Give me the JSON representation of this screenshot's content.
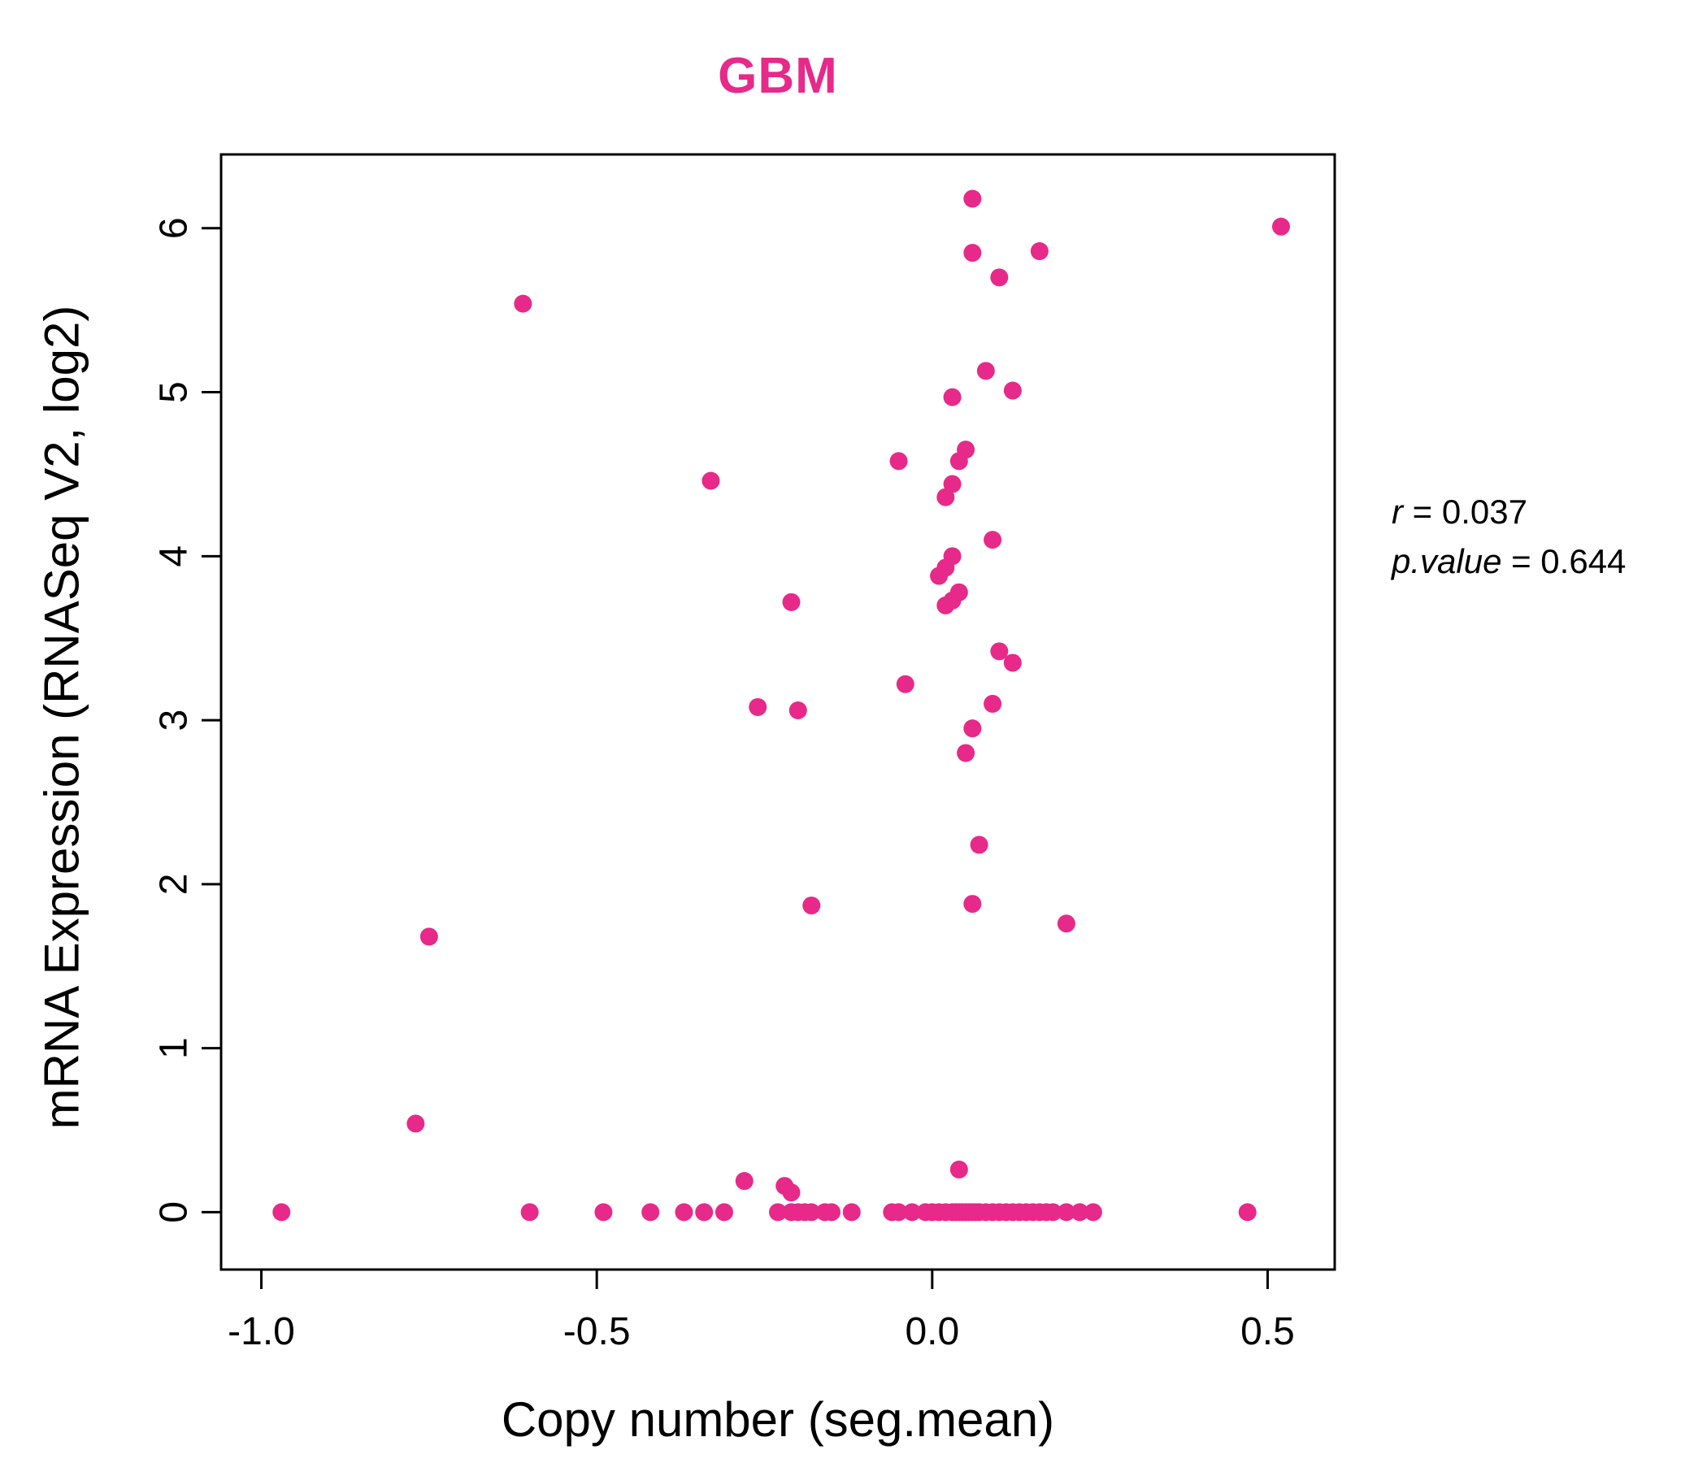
{
  "colors": {
    "accent": "#E7298A",
    "axis": "#000000"
  },
  "annotation": {
    "r_label": "r",
    "r_eq": " = 0.037",
    "p_label": "p.value",
    "p_eq": " = 0.644"
  },
  "chart_data": {
    "type": "scatter",
    "title": "GBM",
    "xlabel": "Copy number (seg.mean)",
    "ylabel": "mRNA Expression (RNASeq V2, log2)",
    "xlim": [
      -1.06,
      0.6
    ],
    "ylim": [
      -0.35,
      6.45
    ],
    "x_ticks": [
      -1.0,
      -0.5,
      0.0,
      0.5
    ],
    "x_tick_labels": [
      "-1.0",
      "-0.5",
      "0.0",
      "0.5"
    ],
    "y_ticks": [
      0,
      1,
      2,
      3,
      4,
      5,
      6
    ],
    "y_tick_labels": [
      "0",
      "1",
      "2",
      "3",
      "4",
      "5",
      "6"
    ],
    "point_color": "#E7298A",
    "grid": false,
    "legend": "none",
    "stats": {
      "r": 0.037,
      "p_value": 0.644
    },
    "points": [
      [
        0.06,
        6.18
      ],
      [
        0.52,
        6.01
      ],
      [
        0.16,
        5.86
      ],
      [
        0.06,
        5.85
      ],
      [
        0.1,
        5.7
      ],
      [
        -0.61,
        5.54
      ],
      [
        0.08,
        5.13
      ],
      [
        0.12,
        5.01
      ],
      [
        0.03,
        4.97
      ],
      [
        0.05,
        4.65
      ],
      [
        0.04,
        4.58
      ],
      [
        -0.05,
        4.58
      ],
      [
        -0.33,
        4.46
      ],
      [
        0.03,
        4.44
      ],
      [
        0.02,
        4.36
      ],
      [
        0.09,
        4.1
      ],
      [
        0.03,
        4.0
      ],
      [
        0.02,
        3.93
      ],
      [
        0.01,
        3.88
      ],
      [
        0.04,
        3.78
      ],
      [
        0.03,
        3.73
      ],
      [
        -0.21,
        3.72
      ],
      [
        0.02,
        3.7
      ],
      [
        0.1,
        3.42
      ],
      [
        0.12,
        3.35
      ],
      [
        -0.04,
        3.22
      ],
      [
        0.09,
        3.1
      ],
      [
        -0.26,
        3.08
      ],
      [
        -0.2,
        3.06
      ],
      [
        0.06,
        2.95
      ],
      [
        0.05,
        2.8
      ],
      [
        0.07,
        2.24
      ],
      [
        0.06,
        1.88
      ],
      [
        -0.18,
        1.87
      ],
      [
        0.2,
        1.76
      ],
      [
        -0.75,
        1.68
      ],
      [
        -0.77,
        0.54
      ],
      [
        0.04,
        0.26
      ],
      [
        -0.28,
        0.19
      ],
      [
        -0.22,
        0.16
      ],
      [
        -0.21,
        0.12
      ],
      [
        -0.97,
        0
      ],
      [
        -0.6,
        0
      ],
      [
        -0.49,
        0
      ],
      [
        -0.42,
        0
      ],
      [
        -0.37,
        0
      ],
      [
        -0.34,
        0
      ],
      [
        -0.31,
        0
      ],
      [
        -0.23,
        0
      ],
      [
        -0.21,
        0
      ],
      [
        -0.2,
        0
      ],
      [
        -0.19,
        0
      ],
      [
        -0.18,
        0
      ],
      [
        -0.16,
        0
      ],
      [
        -0.15,
        0
      ],
      [
        -0.12,
        0
      ],
      [
        -0.06,
        0
      ],
      [
        -0.05,
        0
      ],
      [
        -0.03,
        0
      ],
      [
        -0.01,
        0
      ],
      [
        0.0,
        0
      ],
      [
        0.01,
        0
      ],
      [
        0.02,
        0
      ],
      [
        0.03,
        0
      ],
      [
        0.035,
        0
      ],
      [
        0.04,
        0
      ],
      [
        0.045,
        0
      ],
      [
        0.05,
        0
      ],
      [
        0.055,
        0
      ],
      [
        0.06,
        0
      ],
      [
        0.065,
        0
      ],
      [
        0.07,
        0
      ],
      [
        0.08,
        0
      ],
      [
        0.09,
        0
      ],
      [
        0.1,
        0
      ],
      [
        0.11,
        0
      ],
      [
        0.12,
        0
      ],
      [
        0.13,
        0
      ],
      [
        0.14,
        0
      ],
      [
        0.15,
        0
      ],
      [
        0.16,
        0
      ],
      [
        0.17,
        0
      ],
      [
        0.18,
        0
      ],
      [
        0.2,
        0
      ],
      [
        0.22,
        0
      ],
      [
        0.24,
        0
      ],
      [
        0.47,
        0
      ]
    ]
  }
}
